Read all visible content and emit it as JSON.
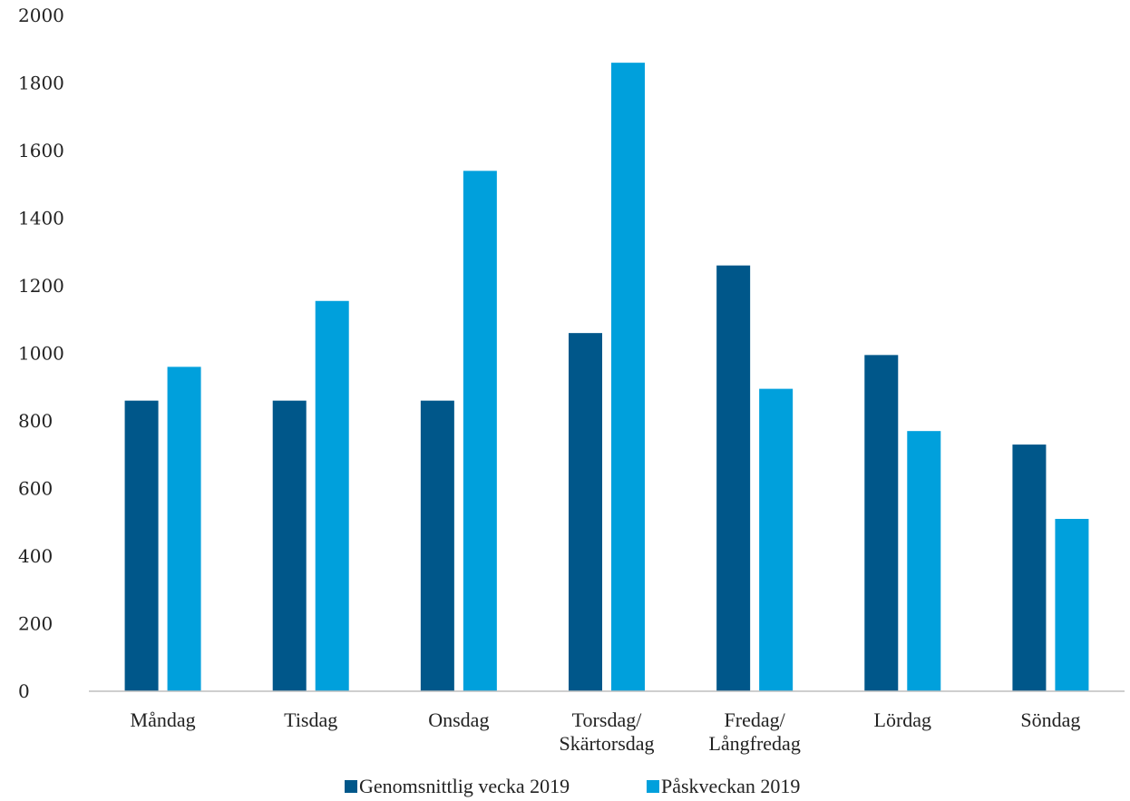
{
  "chart_data": {
    "type": "bar",
    "categories": [
      [
        "Måndag"
      ],
      [
        "Tisdag"
      ],
      [
        "Onsdag"
      ],
      [
        "Torsdag/",
        "Skärtorsdag"
      ],
      [
        "Fredag/",
        "Långfredag"
      ],
      [
        "Lördag"
      ],
      [
        "Söndag"
      ]
    ],
    "series": [
      {
        "name": "Genomsnittlig vecka 2019",
        "color": "#00578a",
        "values": [
          860,
          860,
          860,
          1060,
          1260,
          995,
          730
        ]
      },
      {
        "name": "Påskveckan 2019",
        "color": "#00a0dc",
        "values": [
          960,
          1155,
          1540,
          1860,
          895,
          770,
          510
        ]
      }
    ],
    "yticks": [
      0,
      200,
      400,
      600,
      800,
      1000,
      1200,
      1400,
      1600,
      1800,
      2000
    ],
    "ylim": [
      0,
      2000
    ],
    "grid": false,
    "legend": "bottom"
  }
}
